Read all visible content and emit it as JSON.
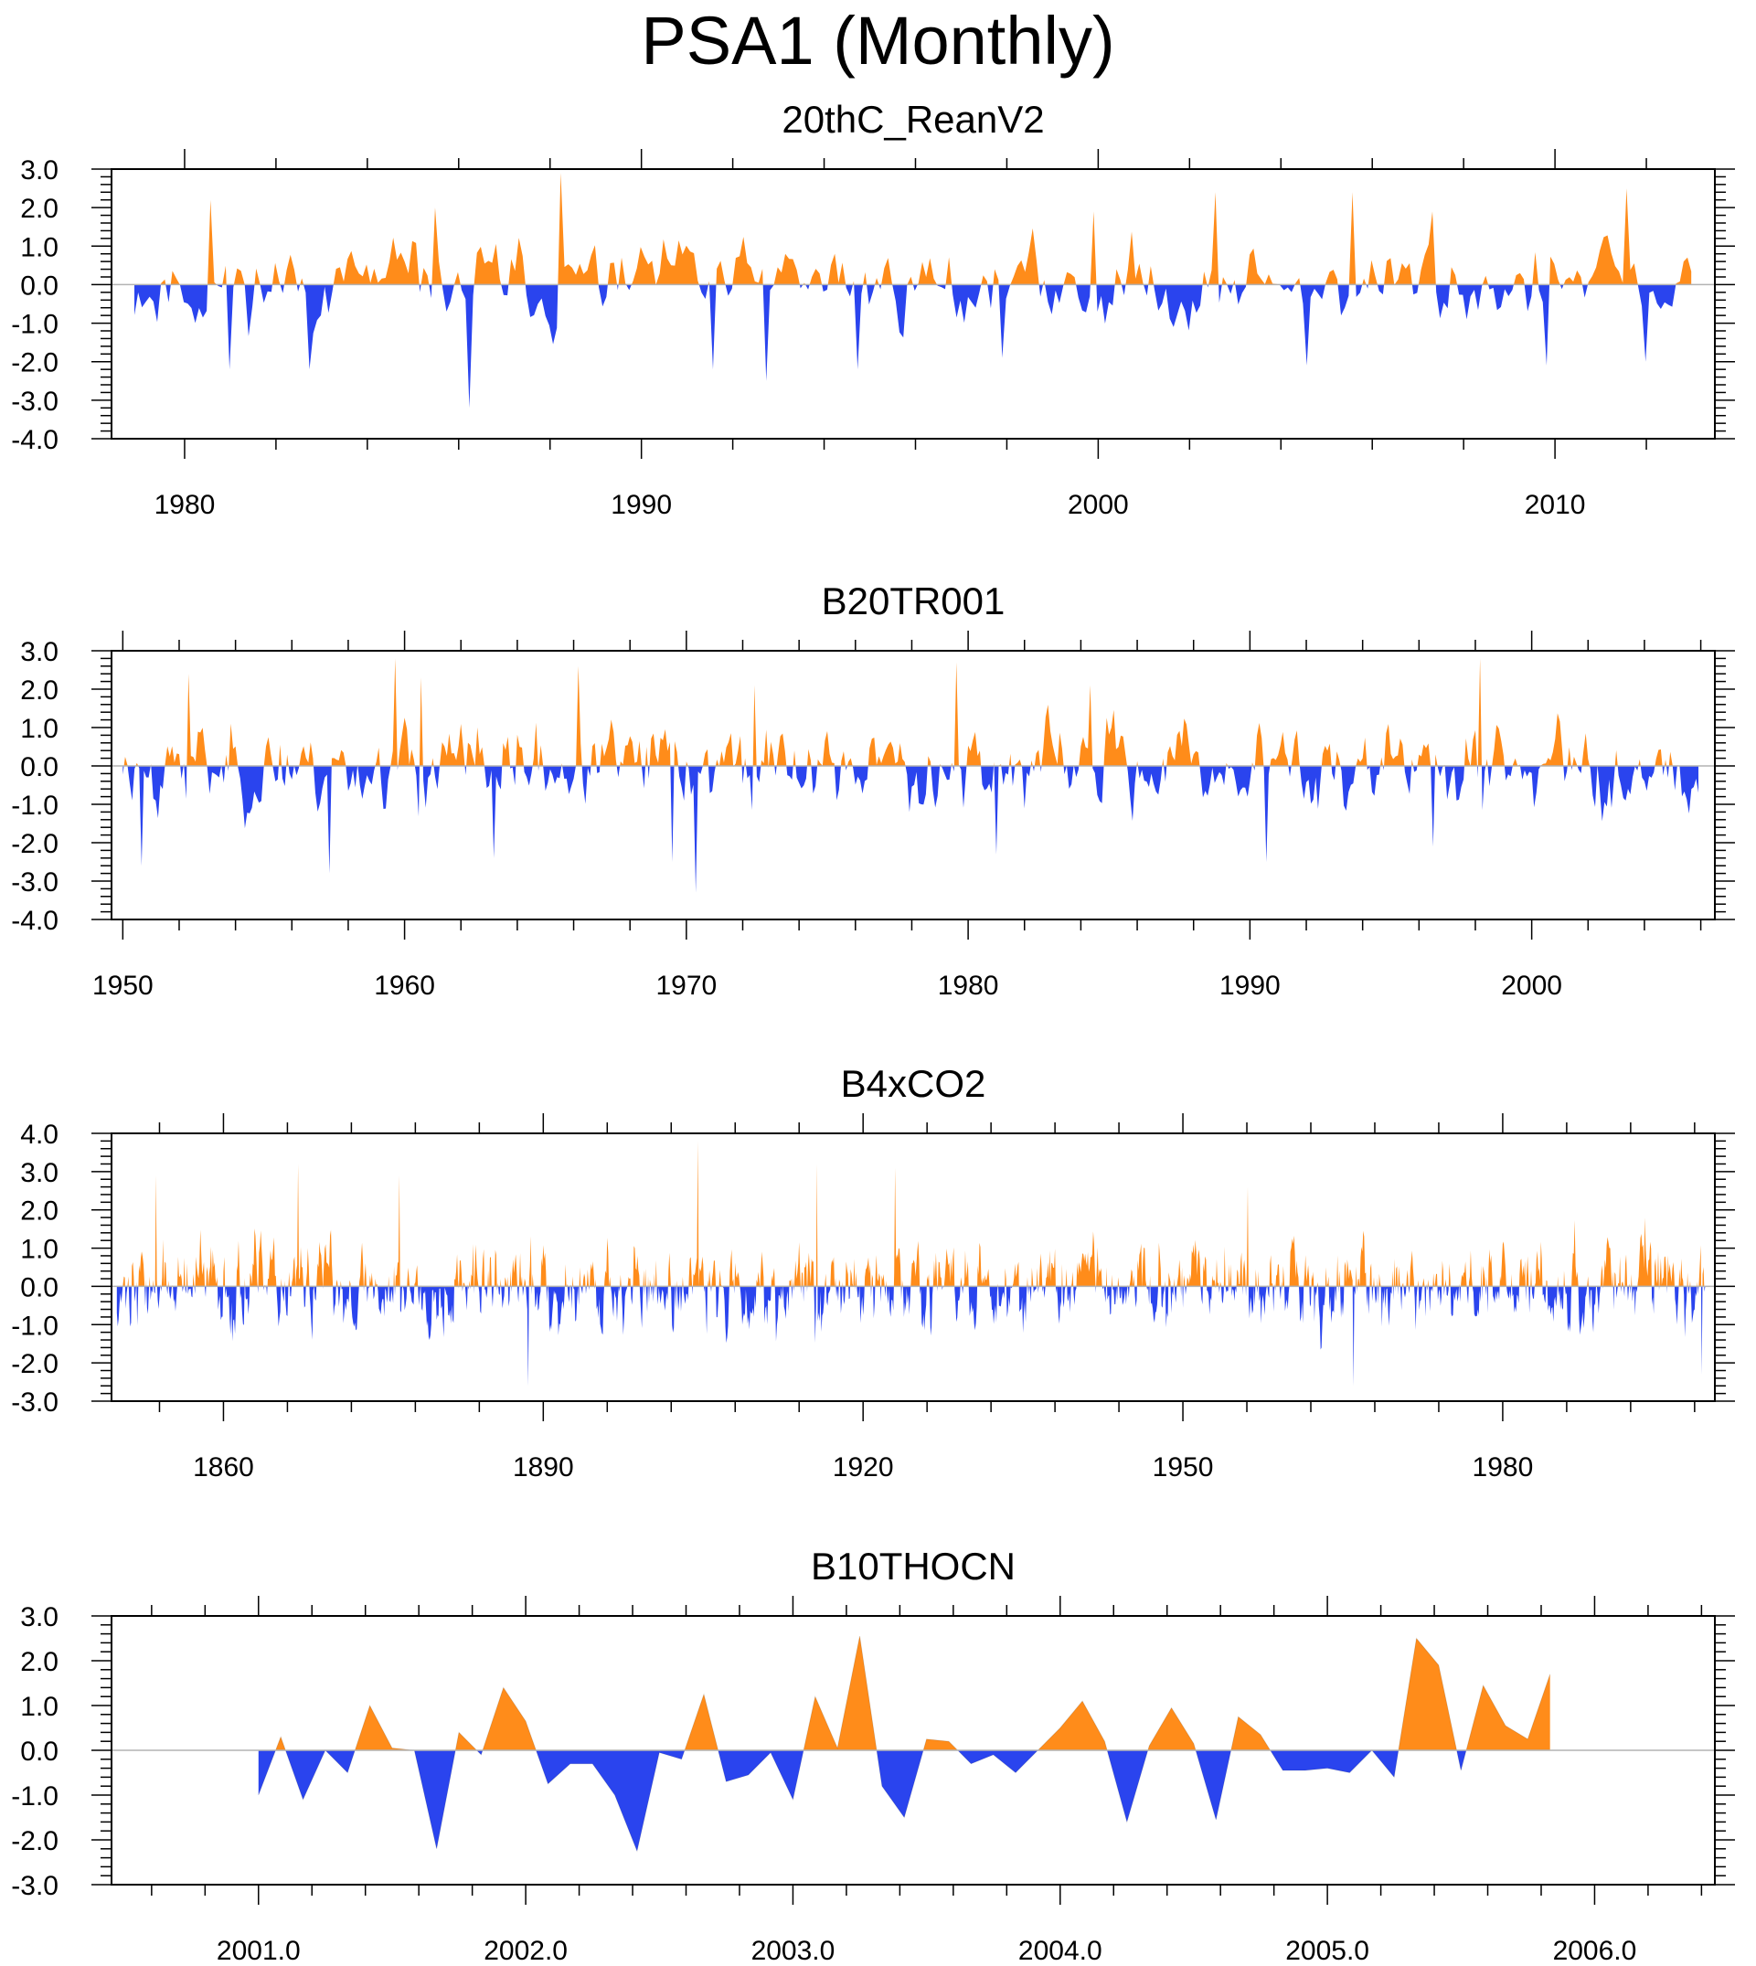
{
  "title": "PSA1 (Monthly)",
  "colors": {
    "positive": "#ff8c1a",
    "negative": "#2a44ee",
    "frame": "#000000",
    "zero_line": "#b3b3b3"
  },
  "chart_data": [
    {
      "type": "area",
      "title": "20thC_ReanV2",
      "xlabel": "",
      "ylabel": "",
      "xlim": [
        1978.4,
        2013.5
      ],
      "ylim": [
        -4.0,
        3.0
      ],
      "yticks": [
        -4.0,
        -3.0,
        -2.0,
        -1.0,
        0.0,
        1.0,
        2.0,
        3.0
      ],
      "ytick_labels": [
        "-4.0",
        "-3.0",
        "-2.0",
        "-1.0",
        "0.0",
        "1.0",
        "2.0",
        "3.0"
      ],
      "xticks": [
        1980,
        1990,
        2000,
        2010
      ],
      "xtick_labels": [
        "1980",
        "1990",
        "2000",
        "2010"
      ],
      "series_range": [
        1978.9,
        2012.95
      ],
      "seed": 11,
      "peaks": [
        [
          1981.0,
          -2.2
        ],
        [
          1980.6,
          2.2
        ],
        [
          1982.7,
          -2.2
        ],
        [
          1986.2,
          -3.2
        ],
        [
          1988.2,
          2.9
        ],
        [
          1985.5,
          2.0
        ],
        [
          1991.6,
          -2.2
        ],
        [
          1992.7,
          -2.5
        ],
        [
          1994.7,
          -2.2
        ],
        [
          1997.9,
          -1.9
        ],
        [
          1999.9,
          1.9
        ],
        [
          2002.6,
          2.4
        ],
        [
          2004.6,
          -2.1
        ],
        [
          2005.6,
          2.4
        ],
        [
          2007.3,
          1.9
        ],
        [
          2009.8,
          -2.1
        ],
        [
          2011.6,
          2.5
        ],
        [
          2012.0,
          -2.0
        ]
      ]
    },
    {
      "type": "area",
      "title": "B20TR001",
      "xlabel": "",
      "ylabel": "",
      "xlim": [
        1949.6,
        2006.5
      ],
      "ylim": [
        -4.0,
        3.0
      ],
      "yticks": [
        -4.0,
        -3.0,
        -2.0,
        -1.0,
        0.0,
        1.0,
        2.0,
        3.0
      ],
      "ytick_labels": [
        "-4.0",
        "-3.0",
        "-2.0",
        "-1.0",
        "0.0",
        "1.0",
        "2.0",
        "3.0"
      ],
      "xticks": [
        1950,
        1960,
        1970,
        1980,
        1990,
        2000
      ],
      "xtick_labels": [
        "1950",
        "1960",
        "1970",
        "1980",
        "1990",
        "2000"
      ],
      "series_range": [
        1950.0,
        2005.9
      ],
      "seed": 23,
      "peaks": [
        [
          1950.7,
          -2.6
        ],
        [
          1952.3,
          2.4
        ],
        [
          1957.3,
          -2.8
        ],
        [
          1959.7,
          2.8
        ],
        [
          1960.6,
          2.3
        ],
        [
          1963.2,
          -2.4
        ],
        [
          1966.2,
          2.6
        ],
        [
          1969.5,
          -2.5
        ],
        [
          1970.3,
          -3.3
        ],
        [
          1972.4,
          2.1
        ],
        [
          1979.6,
          2.7
        ],
        [
          1981.0,
          -2.3
        ],
        [
          1984.3,
          2.1
        ],
        [
          1990.6,
          -2.5
        ],
        [
          1998.2,
          2.8
        ],
        [
          1996.5,
          -2.1
        ]
      ]
    },
    {
      "type": "area",
      "title": "B4xCO2",
      "xlabel": "",
      "ylabel": "",
      "xlim": [
        1849.5,
        1999.9
      ],
      "ylim": [
        -3.0,
        4.0
      ],
      "yticks": [
        -3.0,
        -2.0,
        -1.0,
        0.0,
        1.0,
        2.0,
        3.0,
        4.0
      ],
      "ytick_labels": [
        "-3.0",
        "-2.0",
        "-1.0",
        "0.0",
        "1.0",
        "2.0",
        "3.0",
        "4.0"
      ],
      "xticks": [
        1860,
        1890,
        1920,
        1950,
        1980
      ],
      "xtick_labels": [
        "1860",
        "1890",
        "1920",
        "1950",
        "1980"
      ],
      "series_range": [
        1850.0,
        1999.0
      ],
      "seed": 37,
      "peaks": [
        [
          1853.7,
          2.9
        ],
        [
          1867.0,
          3.2
        ],
        [
          1876.5,
          2.9
        ],
        [
          1888.6,
          -2.6
        ],
        [
          1904.5,
          3.8
        ],
        [
          1915.7,
          3.2
        ],
        [
          1923.0,
          3.1
        ],
        [
          1956.1,
          2.6
        ],
        [
          1966.0,
          -2.6
        ],
        [
          1998.7,
          -2.3
        ],
        [
          1993.3,
          1.8
        ]
      ]
    },
    {
      "type": "area",
      "title": "B10THOCN",
      "xlabel": "",
      "ylabel": "",
      "xlim": [
        2000.45,
        2006.45
      ],
      "ylim": [
        -3.0,
        3.0
      ],
      "yticks": [
        -3.0,
        -2.0,
        -1.0,
        0.0,
        1.0,
        2.0,
        3.0
      ],
      "ytick_labels": [
        "-3.0",
        "-2.0",
        "-1.0",
        "0.0",
        "1.0",
        "2.0",
        "3.0"
      ],
      "xticks": [
        2001.0,
        2002.0,
        2003.0,
        2004.0,
        2005.0,
        2006.0
      ],
      "xtick_labels": [
        "2001.0",
        "2002.0",
        "2003.0",
        "2004.0",
        "2005.0",
        "2006.0"
      ],
      "x_start": 2001.0,
      "x_step": 0.08333,
      "values": [
        -1.0,
        0.3,
        -1.1,
        0.0,
        -0.5,
        1.0,
        0.05,
        0.0,
        -2.2,
        0.4,
        -0.1,
        1.4,
        0.65,
        -0.75,
        -0.3,
        -0.3,
        -1.0,
        -2.25,
        -0.05,
        -0.2,
        1.25,
        -0.7,
        -0.55,
        -0.05,
        -1.1,
        1.2,
        0.05,
        2.55,
        -0.8,
        -1.5,
        0.25,
        0.2,
        -0.3,
        -0.1,
        -0.5,
        0.0,
        0.5,
        1.1,
        0.2,
        -1.6,
        0.1,
        0.95,
        0.15,
        -1.55,
        0.75,
        0.35,
        -0.45,
        -0.45,
        -0.4,
        -0.5,
        0.0,
        -0.6,
        2.5,
        1.9,
        -0.45,
        1.45,
        0.55,
        0.25,
        1.7
      ]
    }
  ]
}
